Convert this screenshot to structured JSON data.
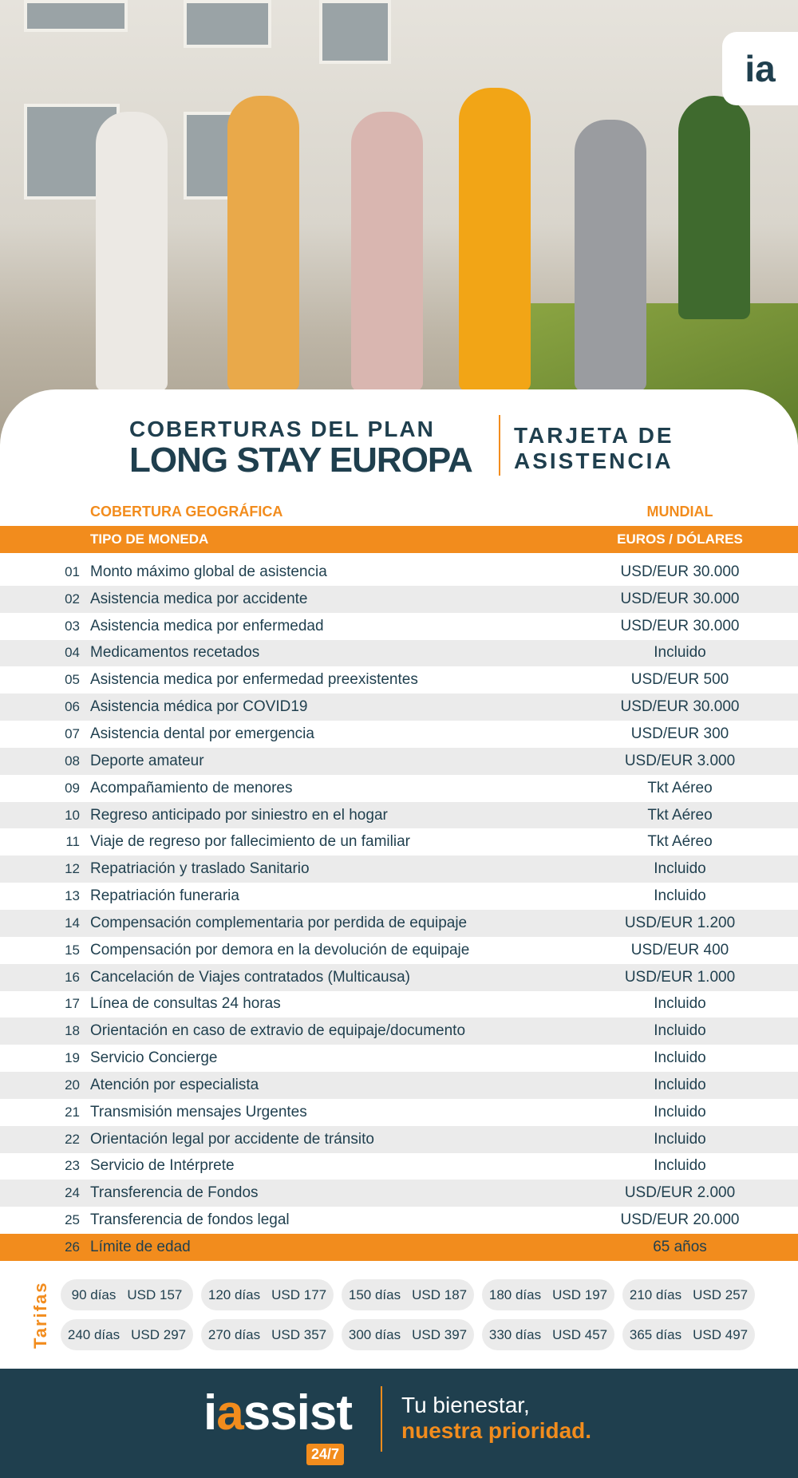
{
  "logo_badge": {
    "letters": "ia"
  },
  "header": {
    "line1": "COBERTURAS DEL PLAN",
    "line2": "LONG STAY EUROPA",
    "right1": "TARJETA DE",
    "right2": "ASISTENCIA"
  },
  "geo": {
    "label": "COBERTURA GEOGRÁFICA",
    "value": "MUNDIAL"
  },
  "currency": {
    "label": "TIPO DE MONEDA",
    "value": "EUROS / DÓLARES"
  },
  "rows": [
    {
      "n": "01",
      "label": "Monto máximo global de asistencia",
      "value": "USD/EUR 30.000"
    },
    {
      "n": "02",
      "label": "Asistencia medica por accidente",
      "value": "USD/EUR 30.000"
    },
    {
      "n": "03",
      "label": "Asistencia medica por enfermedad",
      "value": "USD/EUR 30.000"
    },
    {
      "n": "04",
      "label": "Medicamentos recetados",
      "value": "Incluido"
    },
    {
      "n": "05",
      "label": "Asistencia medica por enfermedad preexistentes",
      "value": "USD/EUR 500"
    },
    {
      "n": "06",
      "label": "Asistencia médica por COVID19",
      "value": "USD/EUR 30.000"
    },
    {
      "n": "07",
      "label": "Asistencia dental por emergencia",
      "value": "USD/EUR 300"
    },
    {
      "n": "08",
      "label": "Deporte amateur",
      "value": "USD/EUR 3.000"
    },
    {
      "n": "09",
      "label": "Acompañamiento de menores",
      "value": "Tkt Aéreo"
    },
    {
      "n": "10",
      "label": "Regreso anticipado por siniestro en el hogar",
      "value": "Tkt Aéreo"
    },
    {
      "n": "11",
      "label": "Viaje de regreso por fallecimiento de un familiar",
      "value": "Tkt Aéreo"
    },
    {
      "n": "12",
      "label": "Repatriación y traslado Sanitario",
      "value": "Incluido"
    },
    {
      "n": "13",
      "label": "Repatriación funeraria",
      "value": "Incluido"
    },
    {
      "n": "14",
      "label": "Compensación complementaria por perdida de equipaje",
      "value": "USD/EUR 1.200"
    },
    {
      "n": "15",
      "label": "Compensación por demora en la devolución de equipaje",
      "value": "USD/EUR 400"
    },
    {
      "n": "16",
      "label": "Cancelación de Viajes contratados (Multicausa)",
      "value": "USD/EUR 1.000"
    },
    {
      "n": "17",
      "label": "Línea de consultas 24 horas",
      "value": "Incluido"
    },
    {
      "n": "18",
      "label": "Orientación en caso de extravio de equipaje/documento",
      "value": "Incluido"
    },
    {
      "n": "19",
      "label": "Servicio Concierge",
      "value": "Incluido"
    },
    {
      "n": "20",
      "label": "Atención por especialista",
      "value": "Incluido"
    },
    {
      "n": "21",
      "label": "Transmisión mensajes Urgentes",
      "value": "Incluido"
    },
    {
      "n": "22",
      "label": "Orientación legal por accidente de tránsito",
      "value": "Incluido"
    },
    {
      "n": "23",
      "label": "Servicio de Intérprete",
      "value": "Incluido"
    },
    {
      "n": "24",
      "label": "Transferencia de Fondos",
      "value": "USD/EUR 2.000"
    },
    {
      "n": "25",
      "label": "Transferencia de fondos legal",
      "value": "USD/EUR 20.000"
    },
    {
      "n": "26",
      "label": "Límite de edad",
      "value": "65 años"
    }
  ],
  "tarifas": {
    "label": "Tarifas",
    "items": [
      {
        "days": "90 días",
        "price": "USD 157"
      },
      {
        "days": "120 días",
        "price": "USD 177"
      },
      {
        "days": "150 días",
        "price": "USD 187"
      },
      {
        "days": "180 días",
        "price": "USD 197"
      },
      {
        "days": "210 días",
        "price": "USD 257"
      },
      {
        "days": "240 días",
        "price": "USD 297"
      },
      {
        "days": "270 días",
        "price": "USD 357"
      },
      {
        "days": "300 días",
        "price": "USD 397"
      },
      {
        "days": "330 días",
        "price": "USD 457"
      },
      {
        "days": "365 días",
        "price": "USD 497"
      }
    ]
  },
  "footer": {
    "brand_i": "i",
    "brand_a": "a",
    "brand_rest": "ssist",
    "badge": "24/7",
    "slogan1": "Tu bienestar,",
    "slogan2": "nuestra prioridad."
  },
  "colors": {
    "accent": "#f28c1d",
    "dark": "#1f3f4e",
    "stripe": "#ebebeb"
  }
}
